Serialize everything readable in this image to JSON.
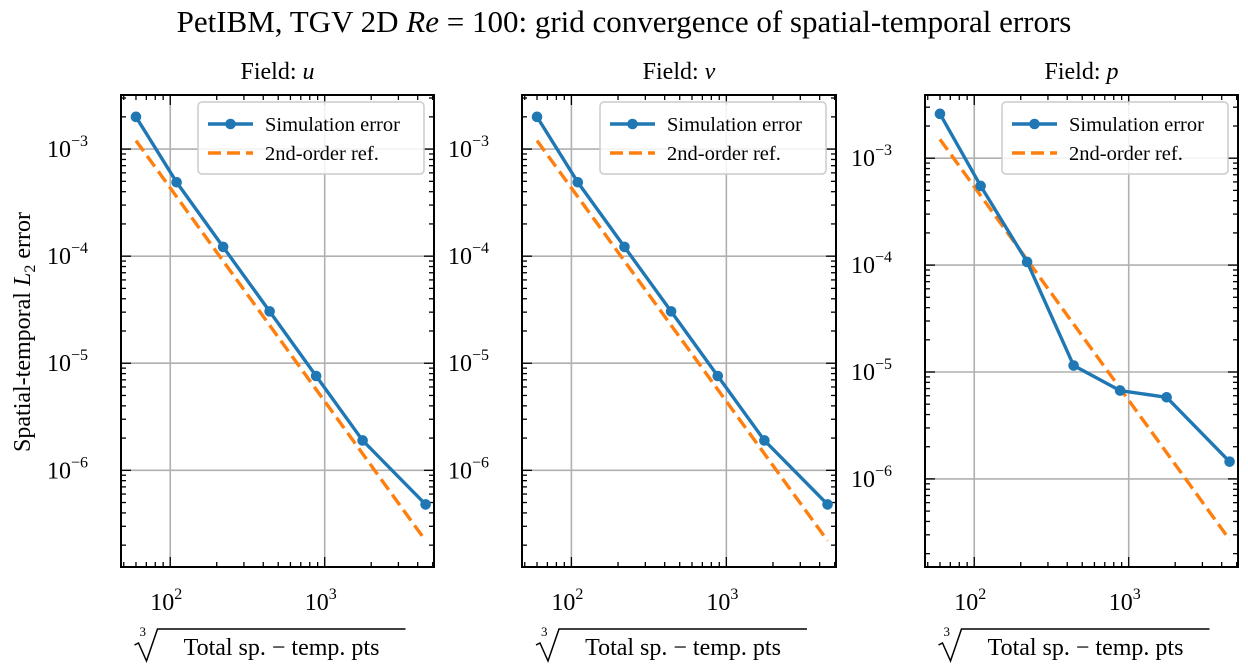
{
  "figure": {
    "suptitle_pre": "PetIBM, TGV 2D ",
    "suptitle_re": "Re",
    "suptitle_post": " = 100: grid convergence of spatial-temporal errors",
    "ylabel_pre": "Spatial-temporal ",
    "ylabel_L": "L",
    "ylabel_sub": "2",
    "ylabel_post": " error",
    "xlabel_root": "3",
    "xlabel_text": "Total sp. − temp. pts"
  },
  "legend": {
    "simulation": "Simulation error",
    "reference": "2nd-order ref."
  },
  "colors": {
    "simulation": "#1f77b4",
    "reference": "#ff7f0e",
    "grid": "#b0b0b0"
  },
  "chart_data": [
    {
      "type": "line",
      "title_prefix": "Field: ",
      "title_var": "u",
      "xscale": "log",
      "yscale": "log",
      "xlim": [
        48,
        5100
      ],
      "ylim": [
        1.25e-07,
        0.0032
      ],
      "xticks": [
        {
          "v": 100,
          "m": "10",
          "e": "2"
        },
        {
          "v": 1000,
          "m": "10",
          "e": "3"
        }
      ],
      "yticks": [
        {
          "v": 1e-06,
          "m": "10",
          "e": "−6"
        },
        {
          "v": 1e-05,
          "m": "10",
          "e": "−5"
        },
        {
          "v": 0.0001,
          "m": "10",
          "e": "−4"
        },
        {
          "v": 0.001,
          "m": "10",
          "e": "−3"
        }
      ],
      "grid": true,
      "legend_position": "upper right",
      "series": [
        {
          "name": "Simulation error",
          "style": "solid-marker",
          "x": [
            60,
            110,
            220,
            440,
            880,
            1760,
            4500
          ],
          "y": [
            0.002,
            0.00049,
            0.000122,
            3.05e-05,
            7.6e-06,
            1.9e-06,
            4.8e-07
          ]
        },
        {
          "name": "2nd-order ref.",
          "style": "dashed",
          "x": [
            60,
            4500
          ],
          "y": [
            0.0012,
            2.2e-07
          ]
        }
      ]
    },
    {
      "type": "line",
      "title_prefix": "Field: ",
      "title_var": "v",
      "xscale": "log",
      "yscale": "log",
      "xlim": [
        48,
        5100
      ],
      "ylim": [
        1.25e-07,
        0.0032
      ],
      "xticks": [
        {
          "v": 100,
          "m": "10",
          "e": "2"
        },
        {
          "v": 1000,
          "m": "10",
          "e": "3"
        }
      ],
      "yticks": [
        {
          "v": 1e-06,
          "m": "10",
          "e": "−6"
        },
        {
          "v": 1e-05,
          "m": "10",
          "e": "−5"
        },
        {
          "v": 0.0001,
          "m": "10",
          "e": "−4"
        },
        {
          "v": 0.001,
          "m": "10",
          "e": "−3"
        }
      ],
      "grid": true,
      "legend_position": "upper right",
      "series": [
        {
          "name": "Simulation error",
          "style": "solid-marker",
          "x": [
            60,
            110,
            220,
            440,
            880,
            1760,
            4500
          ],
          "y": [
            0.002,
            0.00049,
            0.000122,
            3.05e-05,
            7.6e-06,
            1.9e-06,
            4.8e-07
          ]
        },
        {
          "name": "2nd-order ref.",
          "style": "dashed",
          "x": [
            60,
            4500
          ],
          "y": [
            0.0012,
            2.2e-07
          ]
        }
      ]
    },
    {
      "type": "line",
      "title_prefix": "Field: ",
      "title_var": "p",
      "xscale": "log",
      "yscale": "log",
      "xlim": [
        48,
        5100
      ],
      "ylim": [
        1.5e-07,
        0.0039
      ],
      "xticks": [
        {
          "v": 100,
          "m": "10",
          "e": "2"
        },
        {
          "v": 1000,
          "m": "10",
          "e": "3"
        }
      ],
      "yticks": [
        {
          "v": 1e-06,
          "m": "10",
          "e": "−6"
        },
        {
          "v": 1e-05,
          "m": "10",
          "e": "−5"
        },
        {
          "v": 0.0001,
          "m": "10",
          "e": "−4"
        },
        {
          "v": 0.001,
          "m": "10",
          "e": "−3"
        }
      ],
      "grid": true,
      "legend_position": "upper right",
      "series": [
        {
          "name": "Simulation error",
          "style": "solid-marker",
          "x": [
            60,
            110,
            220,
            440,
            880,
            1760,
            4500
          ],
          "y": [
            0.0026,
            0.00055,
            0.000107,
            1.15e-05,
            6.7e-06,
            5.8e-06,
            1.45e-06
          ]
        },
        {
          "name": "2nd-order ref.",
          "style": "dashed",
          "x": [
            60,
            4500
          ],
          "y": [
            0.0015,
            2.7e-07
          ]
        }
      ]
    }
  ]
}
